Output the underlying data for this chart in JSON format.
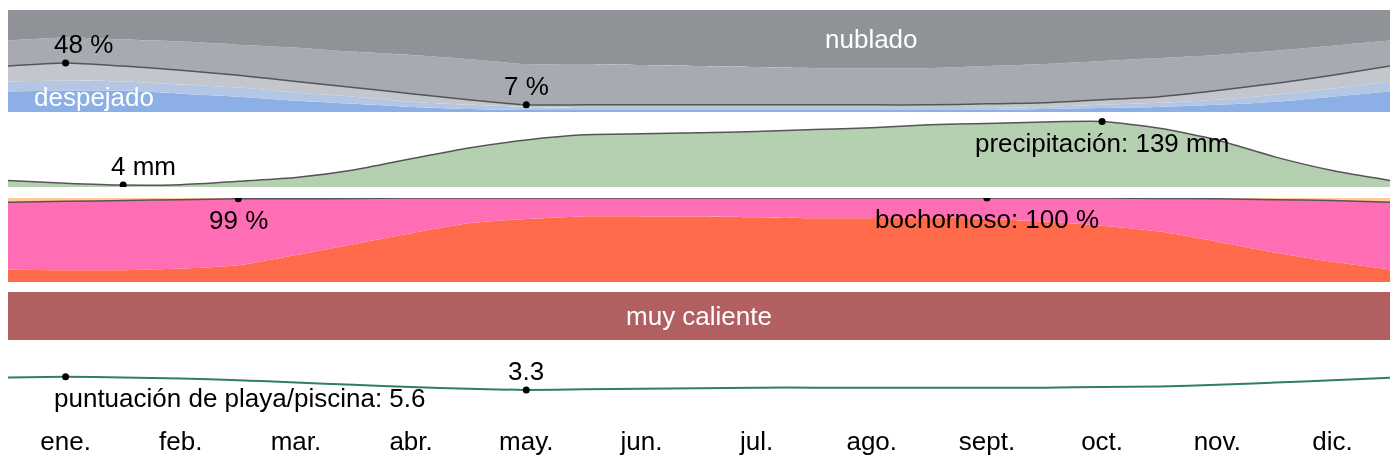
{
  "chart_data": [
    {
      "type": "area",
      "tick_labels": false,
      "categories": [
        null,
        null,
        null,
        null,
        null,
        null,
        null,
        null,
        null,
        null,
        null,
        null,
        null,
        null,
        null,
        null,
        null,
        null,
        null,
        null,
        null,
        null,
        null,
        null,
        null
      ],
      "series": [
        {
          "name": "nublado",
          "color": "#8f9297",
          "values": [
            100,
            100,
            100,
            100,
            100,
            100,
            100,
            100,
            100,
            100,
            100,
            100,
            100,
            100,
            100,
            100,
            100,
            100,
            100,
            100,
            100,
            100,
            100,
            100,
            100
          ]
        },
        {
          "color": "#a7aab0",
          "values": [
            70,
            73,
            71,
            69,
            66,
            63,
            59,
            56,
            52,
            47,
            47,
            46,
            45,
            44,
            43,
            43,
            43,
            45,
            47,
            50,
            53,
            56,
            60,
            65,
            70
          ]
        },
        {
          "color": "#c3c7cd",
          "values": [
            45,
            48,
            45,
            41,
            36,
            30,
            24,
            18,
            12,
            7,
            7,
            7,
            7,
            7,
            7,
            7,
            7,
            8,
            9,
            12,
            15,
            21,
            28,
            36,
            45
          ],
          "value_labels": [
            null,
            "48 %",
            null,
            null,
            null,
            null,
            null,
            null,
            null,
            "7 %",
            null,
            null,
            null,
            null,
            null,
            null,
            null,
            null,
            null,
            null,
            null,
            null,
            null,
            null,
            null
          ]
        },
        {
          "color": "#b3c6e3",
          "values": [
            30,
            31,
            30,
            27,
            24,
            19,
            15,
            10,
            7,
            5,
            4,
            4,
            4,
            4,
            4,
            4,
            4,
            4,
            5,
            7,
            9,
            12,
            17,
            23,
            30
          ]
        },
        {
          "name": "despejado",
          "color": "#8cb0e6",
          "values": [
            20,
            21,
            21,
            18,
            15,
            11,
            8,
            5,
            3,
            2,
            2,
            2,
            2,
            2,
            2,
            2,
            2,
            2,
            3,
            4,
            5,
            7,
            10,
            15,
            20
          ]
        }
      ]
    },
    {
      "type": "area",
      "tick_labels": false,
      "categories": [
        null,
        null,
        null,
        null,
        null,
        null,
        null,
        null,
        null,
        null,
        null,
        null,
        null,
        null,
        null,
        null,
        null,
        null,
        null,
        null,
        null,
        null,
        null,
        null,
        null
      ],
      "series": [
        {
          "color": "#b5cfb1",
          "values": [
            14,
            8,
            4,
            5,
            12,
            20,
            36,
            60,
            83,
            100,
            111,
            113,
            115,
            118,
            122,
            126,
            132,
            135,
            138,
            139,
            125,
            100,
            64,
            35,
            14
          ],
          "value_labels": [
            null,
            null,
            "4 mm",
            null,
            null,
            null,
            null,
            null,
            null,
            null,
            null,
            null,
            null,
            null,
            null,
            null,
            null,
            null,
            null,
            "precipitación: 139 mm",
            null,
            null,
            null,
            null,
            null
          ]
        }
      ]
    },
    {
      "type": "area",
      "tick_labels": false,
      "categories": [
        null,
        null,
        null,
        null,
        null,
        null,
        null,
        null,
        null,
        null,
        null,
        null,
        null,
        null,
        null,
        null,
        null,
        null,
        null,
        null,
        null,
        null,
        null,
        null,
        null
      ],
      "series": [
        {
          "color": "#ffc896",
          "values": [
            100,
            100,
            100,
            100,
            100,
            100,
            100,
            100,
            100,
            100,
            100,
            100,
            100,
            100,
            100,
            100,
            100,
            100,
            100,
            100,
            100,
            100,
            100,
            100,
            100
          ]
        },
        {
          "color": "#ff6eb4",
          "values": [
            95,
            96,
            97,
            98,
            99,
            99,
            99.5,
            100,
            100,
            100,
            100,
            100,
            100,
            100,
            100,
            100,
            100,
            100,
            100,
            100,
            99.5,
            99,
            98,
            97,
            95
          ],
          "value_labels": [
            null,
            null,
            null,
            null,
            "99 %",
            null,
            null,
            null,
            null,
            null,
            null,
            null,
            null,
            null,
            null,
            null,
            null,
            "bochornoso: 100 %",
            null,
            null,
            null,
            null,
            null,
            null,
            null
          ]
        },
        {
          "color": "#ff6a4a",
          "values": [
            15,
            14,
            14,
            16,
            20,
            32,
            45,
            58,
            70,
            75,
            78,
            78,
            78,
            77,
            76,
            76,
            77,
            75,
            72,
            67,
            60,
            48,
            35,
            24,
            15
          ]
        }
      ]
    },
    {
      "type": "other",
      "annotations": [
        "muy caliente"
      ]
    },
    {
      "type": "line",
      "tick_labels": "x",
      "categories": [
        null,
        "ene.",
        null,
        "feb.",
        null,
        "mar.",
        null,
        "abr.",
        null,
        "may.",
        null,
        "jun.",
        null,
        "jul.",
        null,
        "ago.",
        null,
        "sept.",
        null,
        "oct.",
        null,
        "nov.",
        null,
        "dic.",
        null
      ],
      "series": [
        {
          "color": "#2e7d6e",
          "values": [
            5.5,
            5.6,
            5.5,
            5.3,
            5.0,
            4.6,
            4.2,
            3.8,
            3.5,
            3.3,
            3.4,
            3.5,
            3.6,
            3.7,
            3.7,
            3.7,
            3.7,
            3.7,
            3.7,
            3.8,
            3.9,
            4.2,
            4.6,
            5.0,
            5.45
          ],
          "value_labels": [
            null,
            "puntuación de playa/piscina: 5.6",
            null,
            null,
            null,
            null,
            null,
            null,
            null,
            "3.3",
            null,
            null,
            null,
            null,
            null,
            null,
            null,
            null,
            null,
            null,
            null,
            null,
            null,
            null,
            null
          ]
        }
      ]
    }
  ]
}
